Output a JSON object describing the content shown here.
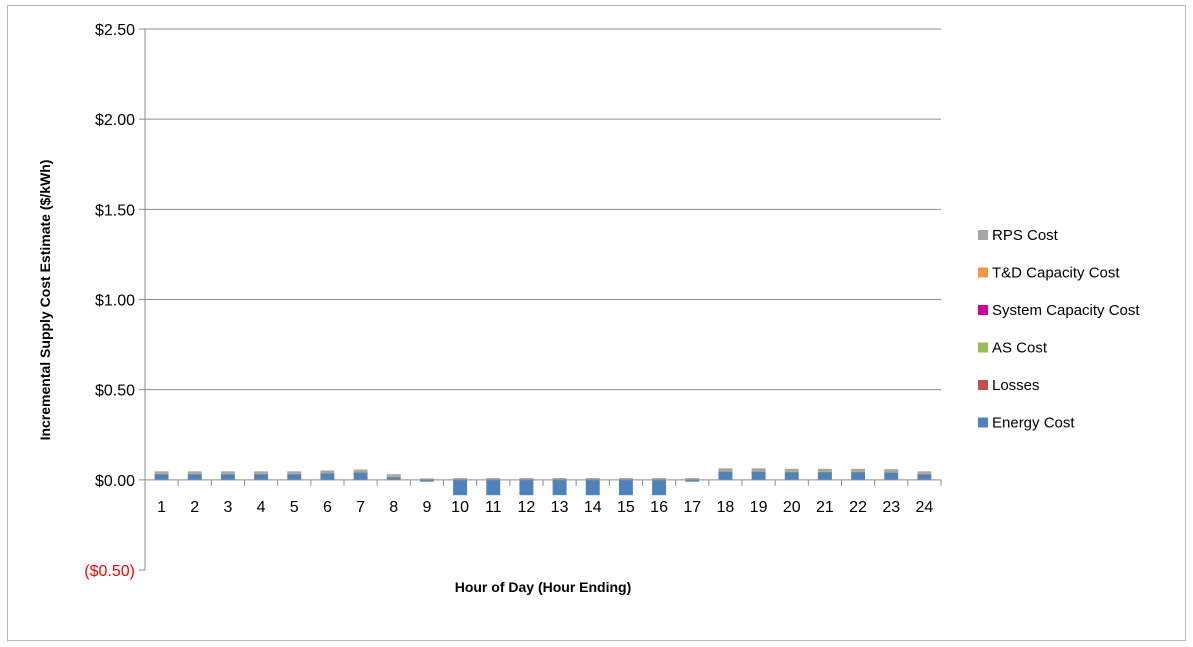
{
  "chart_data": {
    "type": "bar",
    "stacked": true,
    "title": "",
    "xlabel": "Hour of Day (Hour Ending)",
    "ylabel": "Incremental Supply Cost Estimate ($/kWh)",
    "ylim": [
      -0.5,
      2.5
    ],
    "yticks": [
      {
        "value": 2.5,
        "label": "$2.50",
        "color": "#000000"
      },
      {
        "value": 2.0,
        "label": "$2.00",
        "color": "#000000"
      },
      {
        "value": 1.5,
        "label": "$1.50",
        "color": "#000000"
      },
      {
        "value": 1.0,
        "label": "$1.00",
        "color": "#000000"
      },
      {
        "value": 0.5,
        "label": "$0.50",
        "color": "#000000"
      },
      {
        "value": 0.0,
        "label": "$0.00",
        "color": "#000000"
      },
      {
        "value": -0.5,
        "label": "($0.50)",
        "color": "#ff0000"
      }
    ],
    "categories": [
      "1",
      "2",
      "3",
      "4",
      "5",
      "6",
      "7",
      "8",
      "9",
      "10",
      "11",
      "12",
      "13",
      "14",
      "15",
      "16",
      "17",
      "18",
      "19",
      "20",
      "21",
      "22",
      "23",
      "24"
    ],
    "grid": true,
    "legend_position": "right",
    "series": [
      {
        "name": "Energy Cost",
        "color": "#4f81bd",
        "values": [
          0.03,
          0.03,
          0.03,
          0.03,
          0.03,
          0.035,
          0.04,
          0.015,
          -0.01,
          -0.085,
          -0.085,
          -0.085,
          -0.085,
          -0.085,
          -0.085,
          -0.085,
          -0.01,
          0.045,
          0.045,
          0.042,
          0.042,
          0.042,
          0.04,
          0.03
        ]
      },
      {
        "name": "Losses",
        "color": "#c0504d",
        "values": [
          0.002,
          0.002,
          0.002,
          0.002,
          0.002,
          0.002,
          0.002,
          0.001,
          0,
          0,
          0,
          0,
          0,
          0,
          0,
          0,
          0,
          0.002,
          0.002,
          0.002,
          0.002,
          0.002,
          0.002,
          0.002
        ]
      },
      {
        "name": "AS Cost",
        "color": "#9bbb59",
        "values": [
          0.001,
          0.001,
          0.001,
          0.001,
          0.001,
          0.001,
          0.001,
          0.001,
          0,
          0,
          0,
          0,
          0,
          0,
          0,
          0,
          0,
          0.001,
          0.001,
          0.001,
          0.001,
          0.001,
          0.001,
          0.001
        ]
      },
      {
        "name": "System Capacity Cost",
        "color": "#cc0099",
        "values": [
          0,
          0,
          0,
          0,
          0,
          0,
          0,
          0,
          0,
          0,
          0,
          0,
          0,
          0,
          0,
          0,
          0,
          0,
          0,
          0,
          0,
          0,
          0,
          0
        ]
      },
      {
        "name": "T&D Capacity Cost",
        "color": "#f79646",
        "values": [
          0,
          0,
          0,
          0,
          0,
          0,
          0,
          0,
          0,
          0,
          0,
          0,
          0,
          0,
          0,
          0,
          0,
          0,
          0,
          0,
          0,
          0,
          0,
          0
        ]
      },
      {
        "name": "RPS Cost",
        "color": "#a6a6a6",
        "values": [
          0.014,
          0.014,
          0.014,
          0.014,
          0.014,
          0.014,
          0.014,
          0.014,
          0.008,
          0.01,
          0.01,
          0.01,
          0.01,
          0.01,
          0.01,
          0.01,
          0.01,
          0.016,
          0.016,
          0.016,
          0.016,
          0.016,
          0.016,
          0.014
        ]
      }
    ],
    "legend_order": [
      "RPS Cost",
      "T&D Capacity Cost",
      "System Capacity Cost",
      "AS Cost",
      "Losses",
      "Energy Cost"
    ]
  }
}
